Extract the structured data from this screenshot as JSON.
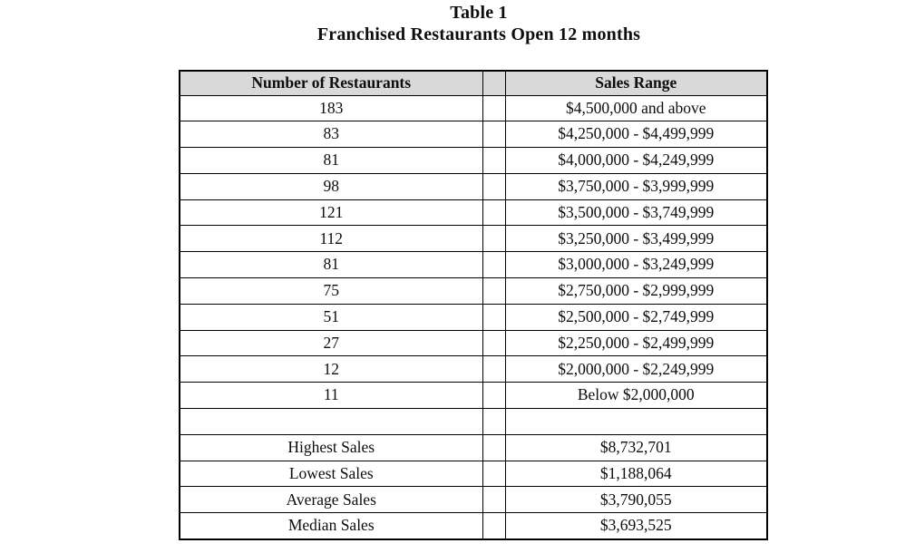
{
  "title": {
    "line1": "Table 1",
    "line2": "Franchised Restaurants Open 12 months"
  },
  "table": {
    "headers": {
      "restaurants": "Number of Restaurants",
      "sales_range": "Sales Range"
    },
    "distribution_rows": [
      {
        "count": "183",
        "range": "$4,500,000 and above"
      },
      {
        "count": "83",
        "range": "$4,250,000 - $4,499,999"
      },
      {
        "count": "81",
        "range": "$4,000,000 - $4,249,999"
      },
      {
        "count": "98",
        "range": "$3,750,000 - $3,999,999"
      },
      {
        "count": "121",
        "range": "$3,500,000 - $3,749,999"
      },
      {
        "count": "112",
        "range": "$3,250,000 - $3,499,999"
      },
      {
        "count": "81",
        "range": "$3,000,000 - $3,249,999"
      },
      {
        "count": "75",
        "range": "$2,750,000 - $2,999,999"
      },
      {
        "count": "51",
        "range": "$2,500,000 - $2,749,999"
      },
      {
        "count": "27",
        "range": "$2,250,000 - $2,499,999"
      },
      {
        "count": "12",
        "range": "$2,000,000 - $2,249,999"
      },
      {
        "count": "11",
        "range": "Below $2,000,000"
      }
    ],
    "blank_row": {
      "count": "",
      "range": ""
    },
    "summary_rows": [
      {
        "label": "Highest Sales",
        "value": "$8,732,701"
      },
      {
        "label": "Lowest Sales",
        "value": "$1,188,064"
      },
      {
        "label": "Average Sales",
        "value": "$3,790,055"
      },
      {
        "label": "Median Sales",
        "value": "$3,693,525"
      }
    ],
    "colors": {
      "header_bg": "#d9d9d9",
      "border": "#000000",
      "text": "#0d0d0d"
    }
  }
}
